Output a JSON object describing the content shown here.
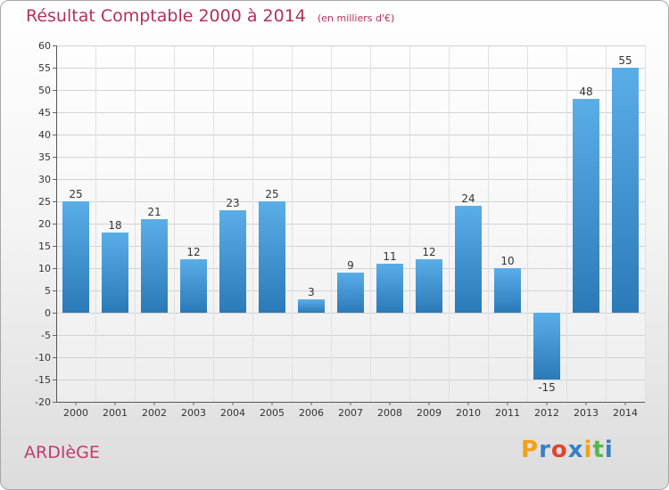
{
  "header": {
    "title": "Résultat Comptable 2000 à 2014",
    "unit": "(en milliers d'€)"
  },
  "commune": "ARDIèGE",
  "logo": {
    "letters": [
      {
        "char": "P",
        "color": "#f0a11a"
      },
      {
        "char": "r",
        "color": "#3a7fc4"
      },
      {
        "char": "o",
        "color": "#e2452f"
      },
      {
        "char": "x",
        "color": "#3a7fc4"
      },
      {
        "char": "i",
        "color": "#f0a11a"
      },
      {
        "char": "t",
        "color": "#55b94a"
      },
      {
        "char": "i",
        "color": "#3a7fc4"
      }
    ]
  },
  "colors": {
    "bar_light": "#5aaee8",
    "bar_dark": "#2a7ab8",
    "title": "#b3305a"
  },
  "chart_data": {
    "type": "bar",
    "categories": [
      "2000",
      "2001",
      "2002",
      "2003",
      "2004",
      "2005",
      "2006",
      "2007",
      "2008",
      "2009",
      "2010",
      "2011",
      "2012",
      "2013",
      "2014"
    ],
    "values": [
      25,
      18,
      21,
      12,
      23,
      25,
      3,
      9,
      11,
      12,
      24,
      10,
      -15,
      48,
      55
    ],
    "data_labels": [
      "25",
      "18",
      "21",
      "12",
      "23",
      "25",
      "3",
      "9",
      "11",
      "12",
      "24",
      "10",
      "-15",
      "48",
      "55"
    ],
    "ylim": [
      -20,
      60
    ],
    "yticks": [
      -20,
      -15,
      -10,
      -5,
      0,
      5,
      10,
      15,
      20,
      25,
      30,
      35,
      40,
      45,
      50,
      55,
      60
    ],
    "grid": true,
    "title": "Résultat Comptable 2000 à 2014",
    "xlabel": "",
    "ylabel": ""
  }
}
